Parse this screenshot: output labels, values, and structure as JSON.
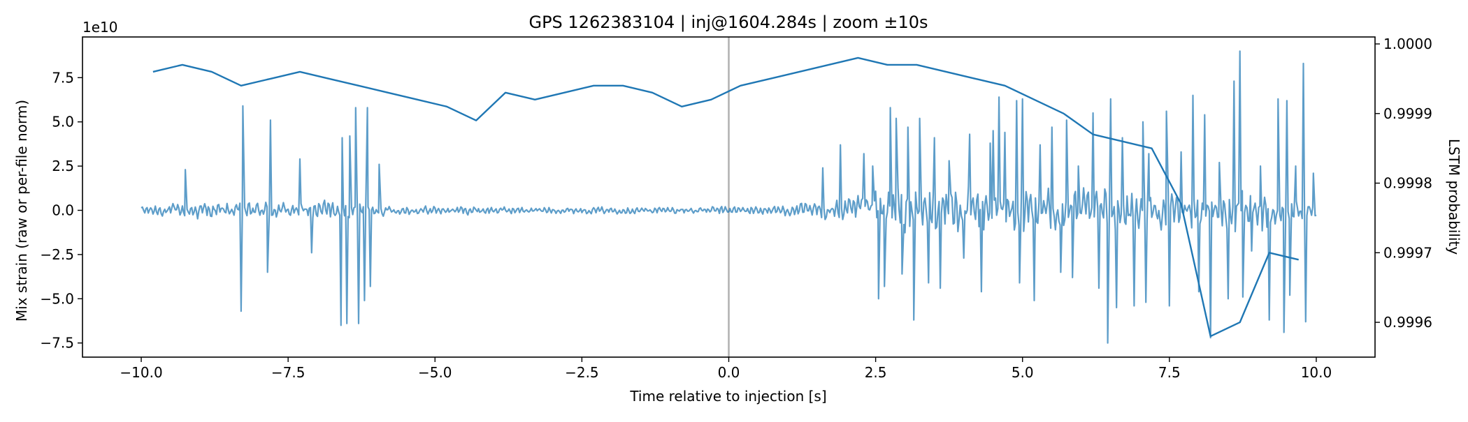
{
  "chart_data": {
    "type": "line",
    "title": "GPS 1262383104 | inj@1604.284s | zoom ±10s",
    "xlabel": "Time relative to injection [s]",
    "ylabel_left": "Mix strain (raw or per-file norm)",
    "ylabel_right": "LSTM probability",
    "left_axis_offset_text": "1e10",
    "xlim": [
      -11.0,
      11.0
    ],
    "ylim_left": [
      -8.3,
      9.8
    ],
    "ylim_right": [
      0.99955,
      1.00001
    ],
    "x_ticks": [
      -10.0,
      -7.5,
      -5.0,
      -2.5,
      0.0,
      2.5,
      5.0,
      7.5,
      10.0
    ],
    "x_tick_labels": [
      "−10.0",
      "−7.5",
      "−5.0",
      "−2.5",
      "0.0",
      "2.5",
      "5.0",
      "7.5",
      "10.0"
    ],
    "y_left_ticks": [
      -7.5,
      -5.0,
      -2.5,
      0.0,
      2.5,
      5.0,
      7.5
    ],
    "y_left_tick_labels": [
      "−7.5",
      "−5.0",
      "−2.5",
      "0.0",
      "2.5",
      "5.0",
      "7.5"
    ],
    "y_right_ticks": [
      0.9996,
      0.9997,
      0.9998,
      0.9999,
      1.0
    ],
    "y_right_tick_labels": [
      "0.9996",
      "0.9997",
      "0.9998",
      "0.9999",
      "1.0000"
    ],
    "injection_line_x": 0.0,
    "colors": {
      "strain": "#1f77b4",
      "probability": "#1f77b4",
      "injection_line": "#b0b0b0"
    },
    "strain_envelope": {
      "note_units": "strain in units of 1e10",
      "sample_rate_per_s": 50,
      "knots": [
        [
          -10.0,
          0.4
        ],
        [
          -9.0,
          0.8
        ],
        [
          -8.5,
          0.7
        ],
        [
          -8.0,
          0.8
        ],
        [
          -7.2,
          0.6
        ],
        [
          -6.9,
          1.2
        ],
        [
          -6.5,
          0.9
        ],
        [
          -6.1,
          0.5
        ],
        [
          -5.5,
          0.45
        ],
        [
          -4.5,
          0.4
        ],
        [
          -3.5,
          0.3
        ],
        [
          -2.5,
          0.3
        ],
        [
          -1.5,
          0.3
        ],
        [
          -0.5,
          0.35
        ],
        [
          0.5,
          0.4
        ],
        [
          1.0,
          0.5
        ],
        [
          1.6,
          0.9
        ],
        [
          2.0,
          1.2
        ],
        [
          2.4,
          1.8
        ],
        [
          3.0,
          2.2
        ],
        [
          4.0,
          2.3
        ],
        [
          5.0,
          2.0
        ],
        [
          5.6,
          1.8
        ],
        [
          6.5,
          2.2
        ],
        [
          7.2,
          1.8
        ],
        [
          7.8,
          1.5
        ],
        [
          8.5,
          2.0
        ],
        [
          9.2,
          1.8
        ],
        [
          10.0,
          0.6
        ]
      ],
      "spikes": [
        [
          -9.25,
          2.3
        ],
        [
          -8.3,
          -5.7
        ],
        [
          -8.27,
          5.9
        ],
        [
          -7.85,
          -3.5
        ],
        [
          -7.8,
          5.1
        ],
        [
          -7.3,
          2.9
        ],
        [
          -7.1,
          -2.4
        ],
        [
          -6.6,
          -6.5
        ],
        [
          -6.58,
          4.1
        ],
        [
          -6.5,
          -6.4
        ],
        [
          -6.45,
          4.2
        ],
        [
          -6.35,
          5.8
        ],
        [
          -6.3,
          -6.4
        ],
        [
          -6.2,
          -5.1
        ],
        [
          -6.15,
          5.8
        ],
        [
          -6.1,
          -4.3
        ],
        [
          -5.95,
          2.6
        ],
        [
          1.6,
          2.4
        ],
        [
          1.9,
          3.7
        ],
        [
          2.3,
          3.2
        ],
        [
          2.45,
          2.5
        ],
        [
          2.55,
          -5.0
        ],
        [
          2.65,
          -4.3
        ],
        [
          2.75,
          5.8
        ],
        [
          2.85,
          5.2
        ],
        [
          2.95,
          -3.6
        ],
        [
          3.05,
          4.7
        ],
        [
          3.15,
          -6.2
        ],
        [
          3.25,
          5.2
        ],
        [
          3.4,
          -4.1
        ],
        [
          3.5,
          4.1
        ],
        [
          3.6,
          -4.4
        ],
        [
          3.75,
          2.8
        ],
        [
          4.0,
          -2.7
        ],
        [
          4.1,
          4.3
        ],
        [
          4.3,
          -4.6
        ],
        [
          4.45,
          3.8
        ],
        [
          4.5,
          4.5
        ],
        [
          4.6,
          6.4
        ],
        [
          4.7,
          4.4
        ],
        [
          4.9,
          6.2
        ],
        [
          4.95,
          -4.1
        ],
        [
          5.0,
          6.3
        ],
        [
          5.2,
          -5.1
        ],
        [
          5.3,
          3.7
        ],
        [
          5.5,
          4.7
        ],
        [
          5.65,
          -3.5
        ],
        [
          5.75,
          5.1
        ],
        [
          5.85,
          -3.8
        ],
        [
          5.95,
          2.5
        ],
        [
          6.2,
          5.5
        ],
        [
          6.3,
          -4.4
        ],
        [
          6.45,
          -7.5
        ],
        [
          6.5,
          6.3
        ],
        [
          6.6,
          -5.5
        ],
        [
          6.7,
          4.1
        ],
        [
          6.9,
          -5.4
        ],
        [
          7.05,
          5.0
        ],
        [
          7.1,
          -5.2
        ],
        [
          7.15,
          3.2
        ],
        [
          7.45,
          5.6
        ],
        [
          7.5,
          -5.4
        ],
        [
          7.7,
          3.3
        ],
        [
          7.9,
          6.5
        ],
        [
          8.0,
          -4.6
        ],
        [
          8.1,
          5.4
        ],
        [
          8.2,
          -7.2
        ],
        [
          8.35,
          2.7
        ],
        [
          8.5,
          -5.0
        ],
        [
          8.6,
          7.3
        ],
        [
          8.7,
          9.0
        ],
        [
          8.75,
          -4.9
        ],
        [
          8.9,
          -2.3
        ],
        [
          9.05,
          2.5
        ],
        [
          9.2,
          -6.2
        ],
        [
          9.35,
          6.3
        ],
        [
          9.45,
          -6.9
        ],
        [
          9.5,
          6.2
        ],
        [
          9.55,
          -4.8
        ],
        [
          9.65,
          2.5
        ],
        [
          9.78,
          8.3
        ],
        [
          9.82,
          -6.3
        ],
        [
          9.95,
          2.1
        ]
      ]
    },
    "probability_series": {
      "x": [
        -9.8,
        -9.3,
        -8.8,
        -8.3,
        -7.8,
        -7.3,
        -6.8,
        -6.3,
        -5.8,
        -5.3,
        -4.8,
        -4.3,
        -3.8,
        -3.3,
        -2.8,
        -2.3,
        -1.8,
        -1.3,
        -0.8,
        -0.3,
        0.2,
        0.7,
        1.2,
        1.7,
        2.2,
        2.7,
        3.2,
        3.7,
        4.2,
        4.7,
        5.2,
        5.7,
        6.2,
        6.7,
        7.2,
        7.7,
        8.2,
        8.7,
        9.2,
        9.7
      ],
      "y": [
        0.99996,
        0.99997,
        0.99996,
        0.99994,
        0.99995,
        0.99996,
        0.99995,
        0.99994,
        0.99993,
        0.99992,
        0.99991,
        0.99989,
        0.99993,
        0.99992,
        0.99993,
        0.99994,
        0.99994,
        0.99993,
        0.99991,
        0.99992,
        0.99994,
        0.99995,
        0.99996,
        0.99997,
        0.99998,
        0.99997,
        0.99997,
        0.99996,
        0.99995,
        0.99994,
        0.99992,
        0.9999,
        0.99987,
        0.99986,
        0.99985,
        0.99977,
        0.99958,
        0.9996,
        0.9997,
        0.99969
      ]
    }
  }
}
